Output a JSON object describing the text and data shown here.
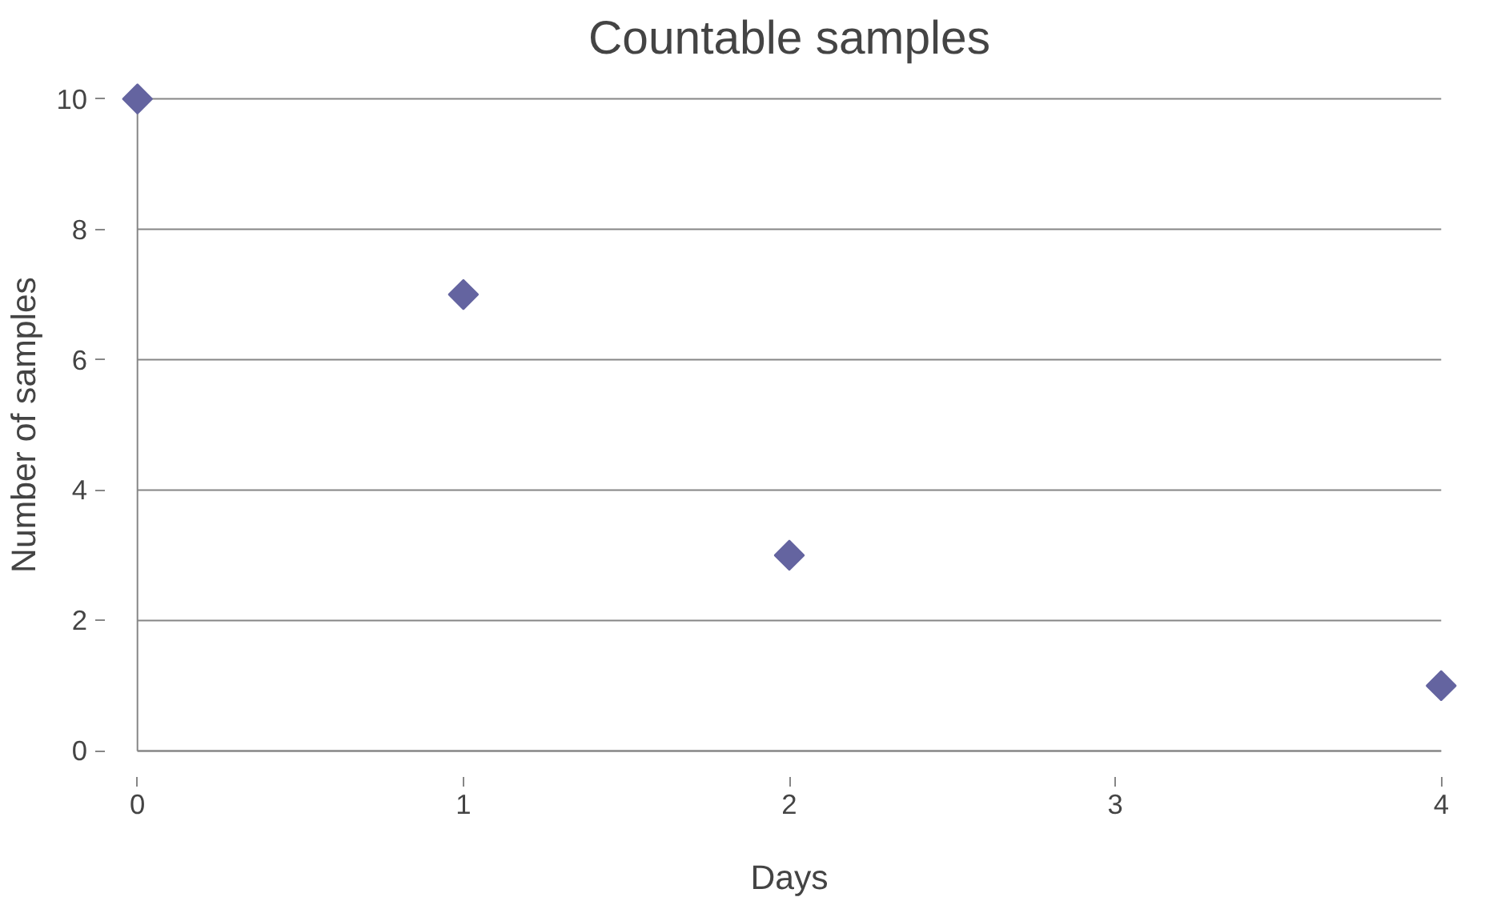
{
  "chart_data": {
    "type": "scatter",
    "title": "Countable samples",
    "xlabel": "Days",
    "ylabel": "Number of samples",
    "x": [
      0,
      1,
      2,
      4
    ],
    "series": [
      {
        "color": "#6464a0",
        "values": [
          10,
          7,
          3,
          1
        ]
      }
    ],
    "xlim": [
      0,
      4
    ],
    "xticks": [
      0,
      1,
      2,
      3,
      4
    ],
    "ylim": [
      0,
      10
    ],
    "yticks": [
      0,
      2,
      4,
      6,
      8,
      10
    ],
    "grid": "y",
    "marker": "diamond"
  }
}
